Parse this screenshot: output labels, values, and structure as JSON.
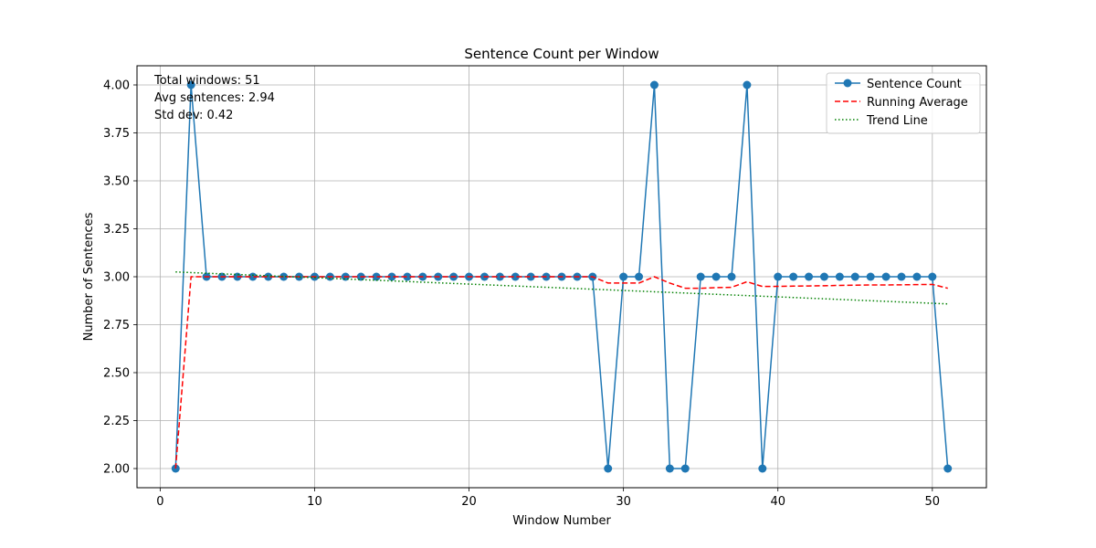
{
  "chart_data": {
    "type": "line",
    "title": "Sentence Count per Window",
    "xlabel": "Window Number",
    "ylabel": "Number of Sentences",
    "xlim": [
      -1.5,
      53.5
    ],
    "ylim": [
      1.9,
      4.1
    ],
    "xticks": [
      0,
      10,
      20,
      30,
      40,
      50
    ],
    "xtick_labels": [
      "0",
      "10",
      "20",
      "30",
      "40",
      "50"
    ],
    "yticks": [
      2.0,
      2.25,
      2.5,
      2.75,
      3.0,
      3.25,
      3.5,
      3.75,
      4.0
    ],
    "ytick_labels": [
      "2.00",
      "2.25",
      "2.50",
      "2.75",
      "3.00",
      "3.25",
      "3.50",
      "3.75",
      "4.00"
    ],
    "grid": true,
    "legend_position": "top-right",
    "x": [
      1,
      2,
      3,
      4,
      5,
      6,
      7,
      8,
      9,
      10,
      11,
      12,
      13,
      14,
      15,
      16,
      17,
      18,
      19,
      20,
      21,
      22,
      23,
      24,
      25,
      26,
      27,
      28,
      29,
      30,
      31,
      32,
      33,
      34,
      35,
      36,
      37,
      38,
      39,
      40,
      41,
      42,
      43,
      44,
      45,
      46,
      47,
      48,
      49,
      50,
      51
    ],
    "series": [
      {
        "name": "Sentence Count",
        "style": "line-marker",
        "color": "#1f77b4",
        "values": [
          2,
          4,
          3,
          3,
          3,
          3,
          3,
          3,
          3,
          3,
          3,
          3,
          3,
          3,
          3,
          3,
          3,
          3,
          3,
          3,
          3,
          3,
          3,
          3,
          3,
          3,
          3,
          3,
          2,
          3,
          3,
          4,
          2,
          2,
          3,
          3,
          3,
          4,
          2,
          3,
          3,
          3,
          3,
          3,
          3,
          3,
          3,
          3,
          3,
          3,
          2
        ]
      },
      {
        "name": "Running Average",
        "style": "dashed",
        "color": "#ff0000",
        "values": [
          2,
          3,
          3,
          3,
          3,
          3,
          3,
          3,
          3,
          3,
          3,
          3,
          3,
          3,
          3,
          3,
          3,
          3,
          3,
          3,
          3,
          3,
          3,
          3,
          3,
          3,
          3,
          3,
          2.967,
          2.967,
          2.967,
          3.0,
          2.967,
          2.94,
          2.94,
          2.943,
          2.945,
          2.974,
          2.949,
          2.95,
          2.951,
          2.952,
          2.953,
          2.955,
          2.956,
          2.957,
          2.957,
          2.958,
          2.959,
          2.96,
          2.94
        ]
      },
      {
        "name": "Trend Line",
        "style": "dotted",
        "color": "#008000",
        "values": [
          3.025,
          3.0217,
          3.0183,
          3.015,
          3.0117,
          3.0083,
          3.005,
          3.0017,
          2.9983,
          2.995,
          2.9917,
          2.9883,
          2.985,
          2.9817,
          2.9783,
          2.975,
          2.9717,
          2.9683,
          2.965,
          2.9617,
          2.9583,
          2.955,
          2.9517,
          2.9483,
          2.945,
          2.9417,
          2.9383,
          2.935,
          2.9317,
          2.9283,
          2.925,
          2.9217,
          2.9183,
          2.915,
          2.9117,
          2.9083,
          2.905,
          2.9017,
          2.8983,
          2.895,
          2.8917,
          2.8883,
          2.885,
          2.8817,
          2.8783,
          2.875,
          2.8717,
          2.8683,
          2.865,
          2.8617,
          2.8583
        ]
      }
    ],
    "annotations": [
      "Total windows: 51",
      "Avg sentences: 2.94",
      "Std dev: 0.42"
    ]
  }
}
